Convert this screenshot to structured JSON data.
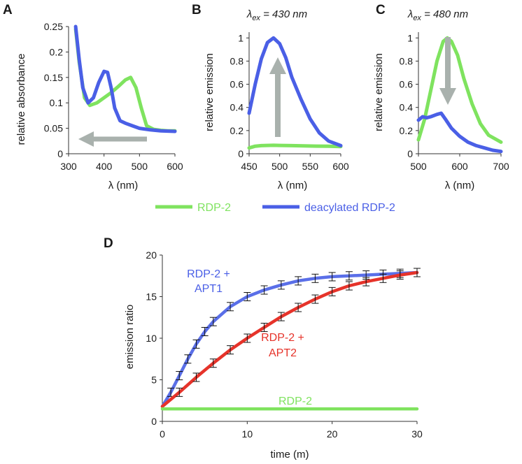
{
  "colors": {
    "rdp2": "#7fe35f",
    "deacylated": "#4a5fe6",
    "apt1": "#5a6fe8",
    "apt2": "#e6332a",
    "arrow": "#a9b1ad",
    "axis": "#333333"
  },
  "legend": {
    "rdp2": "RDP-2",
    "deacylated": "deacylated RDP-2"
  },
  "chart_data": [
    {
      "panel": "A",
      "type": "line",
      "title": "",
      "xlabel": "λ (nm)",
      "ylabel": "relative absorbance",
      "xlim": [
        300,
        600
      ],
      "ylim": [
        0,
        0.25
      ],
      "xticks": [
        300,
        400,
        500,
        600
      ],
      "xtick_labels": [
        "300",
        "400",
        "500",
        "600"
      ],
      "yticks": [
        0,
        0.05,
        0.1,
        0.15,
        0.2,
        0.25
      ],
      "ytick_labels": [
        "0",
        "0.05",
        "0.1",
        "0.15",
        "0.2",
        "0.25"
      ],
      "annotation": "leftward arrow (blue shift)",
      "series": [
        {
          "name": "RDP-2",
          "x": [
            320,
            330,
            345,
            360,
            380,
            400,
            420,
            440,
            460,
            475,
            490,
            505,
            520,
            540,
            560,
            580,
            600
          ],
          "y": [
            0.245,
            0.18,
            0.11,
            0.095,
            0.1,
            0.11,
            0.12,
            0.132,
            0.145,
            0.15,
            0.13,
            0.09,
            0.055,
            0.048,
            0.046,
            0.045,
            0.045
          ]
        },
        {
          "name": "deacylated RDP-2",
          "x": [
            320,
            330,
            340,
            355,
            370,
            385,
            400,
            410,
            420,
            430,
            445,
            460,
            480,
            500,
            530,
            560,
            600
          ],
          "y": [
            0.25,
            0.185,
            0.13,
            0.1,
            0.11,
            0.14,
            0.162,
            0.16,
            0.13,
            0.09,
            0.065,
            0.06,
            0.055,
            0.05,
            0.047,
            0.045,
            0.044
          ]
        }
      ]
    },
    {
      "panel": "B",
      "type": "line",
      "title": "λex = 430 nm",
      "title_main": "λ",
      "title_sub": "ex",
      "title_rest": " = 430 nm",
      "xlabel": "λ (nm)",
      "ylabel": "relative emission",
      "xlim": [
        450,
        600
      ],
      "ylim": [
        0,
        1.05
      ],
      "xticks": [
        450,
        500,
        550,
        600
      ],
      "xtick_labels": [
        "450",
        "500",
        "550",
        "600"
      ],
      "yticks": [
        0,
        0.2,
        0.4,
        0.6,
        0.8,
        1
      ],
      "ytick_labels": [
        "0",
        "0.2",
        "0.4",
        "0.6",
        "0.8",
        "1"
      ],
      "annotation": "upward arrow",
      "series": [
        {
          "name": "RDP-2",
          "x": [
            450,
            460,
            470,
            480,
            490,
            500,
            520,
            540,
            560,
            580,
            600
          ],
          "y": [
            0.05,
            0.065,
            0.07,
            0.072,
            0.073,
            0.072,
            0.07,
            0.068,
            0.066,
            0.065,
            0.062
          ]
        },
        {
          "name": "deacylated RDP-2",
          "x": [
            450,
            460,
            470,
            480,
            490,
            500,
            510,
            520,
            535,
            550,
            565,
            580,
            600
          ],
          "y": [
            0.35,
            0.6,
            0.82,
            0.96,
            1.0,
            0.95,
            0.83,
            0.66,
            0.47,
            0.3,
            0.18,
            0.11,
            0.07
          ]
        }
      ]
    },
    {
      "panel": "C",
      "type": "line",
      "title": "λex = 480 nm",
      "title_main": "λ",
      "title_sub": "ex",
      "title_rest": " = 480 nm",
      "xlabel": "λ (nm)",
      "ylabel": "relative emission",
      "xlim": [
        500,
        700
      ],
      "ylim": [
        0,
        1.05
      ],
      "xticks": [
        500,
        600,
        700
      ],
      "xtick_labels": [
        "500",
        "600",
        "700"
      ],
      "yticks": [
        0,
        0.2,
        0.4,
        0.6,
        0.8,
        1
      ],
      "ytick_labels": [
        "0",
        "0.2",
        "0.4",
        "0.6",
        "0.8",
        "1"
      ],
      "annotation": "downward arrow",
      "series": [
        {
          "name": "RDP-2",
          "x": [
            500,
            515,
            530,
            545,
            560,
            570,
            580,
            595,
            610,
            630,
            650,
            670,
            700
          ],
          "y": [
            0.12,
            0.3,
            0.55,
            0.8,
            0.97,
            1.0,
            0.97,
            0.85,
            0.65,
            0.43,
            0.26,
            0.16,
            0.1
          ]
        },
        {
          "name": "deacylated RDP-2",
          "x": [
            500,
            510,
            520,
            530,
            545,
            555,
            565,
            580,
            600,
            620,
            640,
            660,
            680,
            700
          ],
          "y": [
            0.29,
            0.32,
            0.31,
            0.32,
            0.34,
            0.35,
            0.3,
            0.22,
            0.15,
            0.1,
            0.07,
            0.05,
            0.03,
            0.02
          ]
        }
      ]
    },
    {
      "panel": "D",
      "type": "line",
      "title": "",
      "xlabel": "time (m)",
      "ylabel": "emission ratio",
      "xlim": [
        0,
        30
      ],
      "ylim": [
        0,
        20
      ],
      "xticks": [
        0,
        10,
        20,
        30
      ],
      "xtick_labels": [
        "0",
        "10",
        "20",
        "30"
      ],
      "yticks": [
        0,
        5,
        10,
        15,
        20
      ],
      "ytick_labels": [
        "0",
        "5",
        "10",
        "15",
        "20"
      ],
      "error_bars": true,
      "series": [
        {
          "name": "RDP-2 + APT1",
          "label_lines": [
            "RDP-2 +",
            "APT1"
          ],
          "x": [
            0,
            1,
            2,
            3,
            4,
            5,
            6,
            8,
            10,
            12,
            14,
            16,
            18,
            20,
            22,
            24,
            26,
            28,
            30
          ],
          "y": [
            1.8,
            3.5,
            5.5,
            7.5,
            9.3,
            10.8,
            12.0,
            13.8,
            15.0,
            15.8,
            16.4,
            16.9,
            17.2,
            17.4,
            17.5,
            17.6,
            17.7,
            17.8,
            17.9
          ]
        },
        {
          "name": "RDP-2 + APT2",
          "label_lines": [
            "RDP-2 +",
            "APT2"
          ],
          "x": [
            0,
            2,
            4,
            6,
            8,
            10,
            12,
            14,
            16,
            18,
            20,
            22,
            24,
            26,
            28,
            30
          ],
          "y": [
            1.8,
            3.5,
            5.3,
            7.0,
            8.6,
            10.0,
            11.3,
            12.6,
            13.7,
            14.7,
            15.6,
            16.3,
            16.8,
            17.2,
            17.6,
            17.9
          ]
        },
        {
          "name": "RDP-2",
          "label_lines": [
            "RDP-2"
          ],
          "x": [
            0,
            30
          ],
          "y": [
            1.5,
            1.5
          ]
        }
      ]
    }
  ]
}
